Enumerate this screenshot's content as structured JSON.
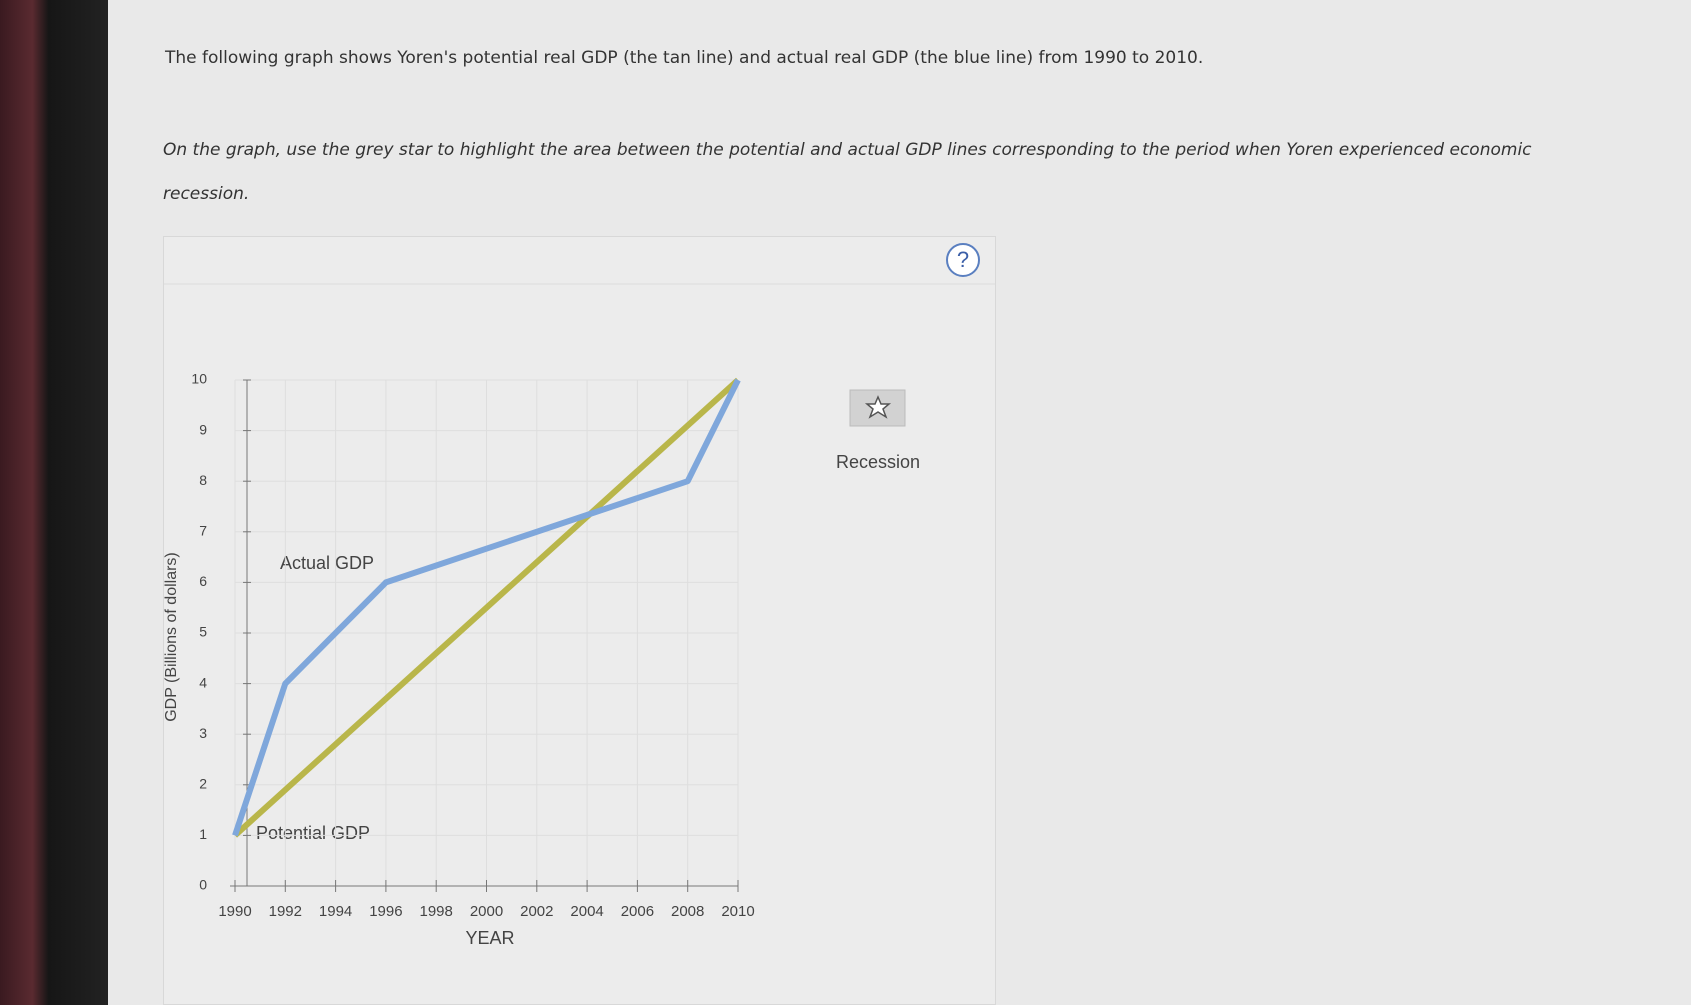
{
  "intro": "The following graph shows Yoren's potential real GDP (the tan line) and actual real GDP (the blue line) from 1990 to 2010.",
  "instruction": "On the graph, use the grey star to highlight the area between the potential and actual GDP lines corresponding to the period when Yoren experienced economic recession.",
  "help": "?",
  "tool": {
    "label": "Recession"
  },
  "chart_data": {
    "type": "line",
    "x_label": "YEAR",
    "y_label": "GDP (Billions of dollars)",
    "series": [
      {
        "name": "Potential GDP",
        "color": "#b9b64a",
        "x": [
          1990,
          2010
        ],
        "values": [
          1,
          10
        ]
      },
      {
        "name": "Actual GDP",
        "color": "#7fa7db",
        "x": [
          1990,
          1992,
          1996,
          2008,
          2010
        ],
        "values": [
          1,
          4,
          6,
          8,
          10
        ]
      }
    ],
    "xlim": [
      1990,
      2010
    ],
    "xticks": [
      1990,
      1992,
      1994,
      1996,
      1998,
      2000,
      2002,
      2004,
      2006,
      2008,
      2010
    ],
    "ylim": [
      0,
      10
    ],
    "yticks": [
      0,
      1,
      2,
      3,
      4,
      5,
      6,
      7,
      8,
      9,
      10
    ],
    "grid": true
  }
}
